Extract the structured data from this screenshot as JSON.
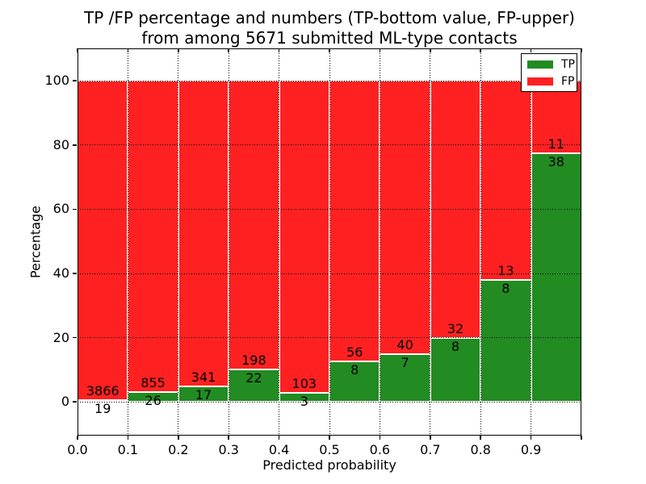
{
  "figure": {
    "title_line1": "TP /FP percentage and numbers (TP-bottom value, FP-upper)",
    "title_line2": "from among 5671 submitted ML-type contacts",
    "xlabel": "Predicted probability",
    "ylabel": "Percentage"
  },
  "colors": {
    "tp_green": "#228b22",
    "fp_red": "#ff2121",
    "grid": "#000000",
    "frame": "#000000",
    "background": "#ffffff"
  },
  "legend": {
    "position": "upper right",
    "entries": [
      {
        "label": "TP",
        "color": "#228b22"
      },
      {
        "label": "FP",
        "color": "#ff2121"
      }
    ]
  },
  "chart_data": {
    "type": "bar",
    "stacked": true,
    "normalized": "each 0.1-wide probability bin scaled to 100%",
    "total_submitted_contacts": 5671,
    "title": "TP /FP percentage and numbers (TP-bottom value, FP-upper) from among 5671 submitted ML-type contacts",
    "xlabel": "Predicted probability",
    "ylabel": "Percentage",
    "bin_edges": [
      0.0,
      0.1,
      0.2,
      0.3,
      0.4,
      0.5,
      0.6,
      0.7,
      0.8,
      0.9,
      1.0
    ],
    "categories": [
      "0.0-0.1",
      "0.1-0.2",
      "0.2-0.3",
      "0.3-0.4",
      "0.4-0.5",
      "0.5-0.6",
      "0.6-0.7",
      "0.7-0.8",
      "0.8-0.9",
      "0.9-1.0"
    ],
    "series": [
      {
        "name": "TP",
        "color": "#228b22",
        "counts": [
          19,
          26,
          17,
          22,
          3,
          8,
          7,
          8,
          8,
          38
        ],
        "percent_of_bin": [
          0.49,
          2.95,
          4.75,
          10.0,
          2.83,
          12.5,
          14.89,
          20.0,
          38.1,
          77.55
        ]
      },
      {
        "name": "FP",
        "color": "#ff2121",
        "counts": [
          3866,
          855,
          341,
          198,
          103,
          56,
          40,
          32,
          13,
          11
        ],
        "percent_of_bin": [
          99.51,
          97.05,
          95.25,
          90.0,
          97.17,
          87.5,
          85.11,
          80.0,
          61.9,
          22.45
        ]
      }
    ],
    "xticks": [
      "0.0",
      "0.1",
      "0.2",
      "0.3",
      "0.4",
      "0.5",
      "0.6",
      "0.7",
      "0.8",
      "0.9"
    ],
    "yticks": [
      0,
      20,
      40,
      60,
      80,
      100
    ],
    "ylim": [
      -10.5,
      110.1
    ],
    "xlim": [
      0.0,
      1.0
    ],
    "grid": "dotted",
    "legend_position": "upper right"
  }
}
